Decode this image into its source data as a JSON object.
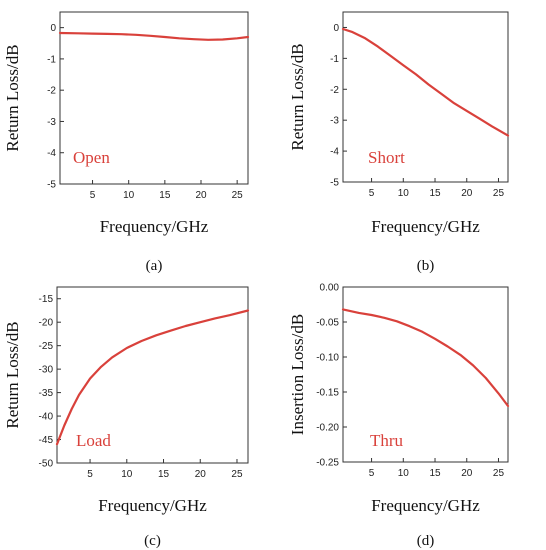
{
  "accent_color": "#d9413b",
  "chart_data": [
    {
      "type": "line",
      "panel": "(a)",
      "annotation": "Open",
      "xlabel": "Frequency/GHz",
      "ylabel": "Return Loss/dB",
      "xlim": [
        0.5,
        26.5
      ],
      "ylim": [
        -5,
        0.5
      ],
      "xticks": [
        5,
        10,
        15,
        20,
        25
      ],
      "xtick_labels": [
        "5",
        "10",
        "15",
        "20",
        "25"
      ],
      "yticks": [
        0,
        -1,
        -2,
        -3,
        -4,
        -5
      ],
      "ytick_labels": [
        "0",
        "-1",
        "-2",
        "-3",
        "-4",
        "-5"
      ],
      "series": [
        {
          "x": [
            0.5,
            3,
            5,
            7,
            9,
            11,
            13,
            15,
            17,
            19,
            21,
            23,
            25,
            26.5
          ],
          "y": [
            -0.17,
            -0.18,
            -0.19,
            -0.2,
            -0.21,
            -0.23,
            -0.26,
            -0.3,
            -0.34,
            -0.37,
            -0.39,
            -0.38,
            -0.34,
            -0.3
          ]
        }
      ]
    },
    {
      "type": "line",
      "panel": "(b)",
      "annotation": "Short",
      "xlabel": "Frequency/GHz",
      "ylabel": "Return Loss/dB",
      "xlim": [
        0.5,
        26.5
      ],
      "ylim": [
        -5,
        0.5
      ],
      "xticks": [
        5,
        10,
        15,
        20,
        25
      ],
      "xtick_labels": [
        "5",
        "10",
        "15",
        "20",
        "25"
      ],
      "yticks": [
        0,
        -1,
        -2,
        -3,
        -4,
        -5
      ],
      "ytick_labels": [
        "0",
        "-1",
        "-2",
        "-3",
        "-4",
        "-5"
      ],
      "series": [
        {
          "x": [
            0.5,
            2,
            4,
            6,
            8,
            10,
            12,
            14,
            16,
            18,
            20,
            22,
            24,
            26.5
          ],
          "y": [
            -0.05,
            -0.15,
            -0.35,
            -0.62,
            -0.92,
            -1.22,
            -1.52,
            -1.85,
            -2.15,
            -2.45,
            -2.7,
            -2.95,
            -3.2,
            -3.5
          ]
        }
      ]
    },
    {
      "type": "line",
      "panel": "(c)",
      "annotation": "Load",
      "xlabel": "Frequency/GHz",
      "ylabel": "Return Loss/dB",
      "xlim": [
        0.5,
        26.5
      ],
      "ylim": [
        -50,
        -12.5
      ],
      "xticks": [
        5,
        10,
        15,
        20,
        25
      ],
      "xtick_labels": [
        "5",
        "10",
        "15",
        "20",
        "25"
      ],
      "yticks": [
        -15,
        -20,
        -25,
        -30,
        -35,
        -40,
        -45,
        -50
      ],
      "ytick_labels": [
        "-15",
        "-20",
        "-25",
        "-30",
        "-35",
        "-40",
        "-45",
        "-50"
      ],
      "series": [
        {
          "x": [
            0.5,
            1.5,
            2.5,
            3.5,
            5,
            6.5,
            8,
            10,
            12,
            14,
            16,
            18,
            20,
            22,
            24,
            26.5
          ],
          "y": [
            -46,
            -42,
            -38.5,
            -35.5,
            -32,
            -29.5,
            -27.5,
            -25.5,
            -24,
            -22.8,
            -21.8,
            -20.8,
            -20,
            -19.2,
            -18.5,
            -17.5
          ]
        }
      ]
    },
    {
      "type": "line",
      "panel": "(d)",
      "annotation": "Thru",
      "xlabel": "Frequency/GHz",
      "ylabel": "Insertion Loss/dB",
      "xlim": [
        0.5,
        26.5
      ],
      "ylim": [
        -0.25,
        0
      ],
      "xticks": [
        5,
        10,
        15,
        20,
        25
      ],
      "xtick_labels": [
        "5",
        "10",
        "15",
        "20",
        "25"
      ],
      "yticks": [
        0,
        -0.05,
        -0.1,
        -0.15,
        -0.2,
        -0.25
      ],
      "ytick_labels": [
        "0.00",
        "-0.05",
        "-0.10",
        "-0.15",
        "-0.20",
        "-0.25"
      ],
      "series": [
        {
          "x": [
            0.5,
            3,
            5,
            7,
            9,
            11,
            13,
            15,
            17,
            19,
            21,
            23,
            25,
            26.5
          ],
          "y": [
            -0.032,
            -0.037,
            -0.04,
            -0.044,
            -0.049,
            -0.056,
            -0.064,
            -0.074,
            -0.085,
            -0.097,
            -0.112,
            -0.13,
            -0.152,
            -0.17
          ]
        }
      ]
    }
  ]
}
